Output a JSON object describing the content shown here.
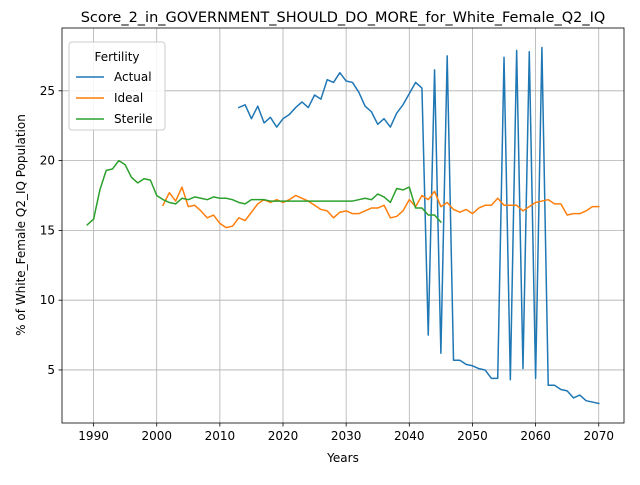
{
  "chart_data": {
    "type": "line",
    "title": "Score_2_in_GOVERNMENT_SHOULD_DO_MORE_for_White_Female_Q2_IQ",
    "xlabel": "Years",
    "ylabel": "% of White_Female Q2_IQ Population",
    "xlim": [
      1985,
      2074
    ],
    "ylim": [
      1.2,
      29.5
    ],
    "xticks": [
      1990,
      2000,
      2010,
      2020,
      2030,
      2040,
      2050,
      2060,
      2070
    ],
    "yticks": [
      5,
      10,
      15,
      20,
      25
    ],
    "grid": true,
    "legend": {
      "title": "Fertility",
      "position": "top-left",
      "entries": [
        "Actual",
        "Ideal",
        "Sterile"
      ]
    },
    "series": [
      {
        "name": "Actual",
        "color": "#1f77b4",
        "points": [
          [
            2013,
            23.8
          ],
          [
            2014,
            24.0
          ],
          [
            2015,
            23.0
          ],
          [
            2016,
            23.9
          ],
          [
            2017,
            22.7
          ],
          [
            2018,
            23.1
          ],
          [
            2019,
            22.4
          ],
          [
            2020,
            23.0
          ],
          [
            2021,
            23.3
          ],
          [
            2022,
            23.8
          ],
          [
            2023,
            24.2
          ],
          [
            2024,
            23.8
          ],
          [
            2025,
            24.7
          ],
          [
            2026,
            24.4
          ],
          [
            2027,
            25.8
          ],
          [
            2028,
            25.6
          ],
          [
            2029,
            26.3
          ],
          [
            2030,
            25.7
          ],
          [
            2031,
            25.6
          ],
          [
            2032,
            24.9
          ],
          [
            2033,
            23.9
          ],
          [
            2034,
            23.5
          ],
          [
            2035,
            22.6
          ],
          [
            2036,
            23.0
          ],
          [
            2037,
            22.4
          ],
          [
            2038,
            23.4
          ],
          [
            2039,
            24.0
          ],
          [
            2040,
            24.8
          ],
          [
            2041,
            25.6
          ],
          [
            2042,
            25.2
          ],
          [
            2043,
            7.5
          ],
          [
            2044,
            26.5
          ],
          [
            2045,
            6.2
          ],
          [
            2046,
            27.5
          ],
          [
            2047,
            5.7
          ],
          [
            2048,
            5.7
          ],
          [
            2049,
            5.4
          ],
          [
            2050,
            5.3
          ],
          [
            2051,
            5.1
          ],
          [
            2052,
            5.0
          ],
          [
            2053,
            4.4
          ],
          [
            2054,
            4.4
          ],
          [
            2055,
            27.4
          ],
          [
            2056,
            4.3
          ],
          [
            2057,
            27.9
          ],
          [
            2058,
            5.1
          ],
          [
            2059,
            27.8
          ],
          [
            2060,
            4.4
          ],
          [
            2061,
            28.1
          ],
          [
            2062,
            3.9
          ],
          [
            2063,
            3.9
          ],
          [
            2064,
            3.6
          ],
          [
            2065,
            3.5
          ],
          [
            2066,
            3.0
          ],
          [
            2067,
            3.2
          ],
          [
            2068,
            2.8
          ],
          [
            2069,
            2.7
          ],
          [
            2070,
            2.6
          ]
        ]
      },
      {
        "name": "Ideal",
        "color": "#ff7f0e",
        "points": [
          [
            2001,
            16.8
          ],
          [
            2002,
            17.7
          ],
          [
            2003,
            17.1
          ],
          [
            2004,
            18.1
          ],
          [
            2005,
            16.7
          ],
          [
            2006,
            16.8
          ],
          [
            2007,
            16.4
          ],
          [
            2008,
            15.9
          ],
          [
            2009,
            16.1
          ],
          [
            2010,
            15.5
          ],
          [
            2011,
            15.2
          ],
          [
            2012,
            15.3
          ],
          [
            2013,
            15.9
          ],
          [
            2014,
            15.7
          ],
          [
            2015,
            16.3
          ],
          [
            2016,
            16.9
          ],
          [
            2017,
            17.2
          ],
          [
            2018,
            17.0
          ],
          [
            2019,
            17.2
          ],
          [
            2020,
            17.0
          ],
          [
            2021,
            17.2
          ],
          [
            2022,
            17.5
          ],
          [
            2023,
            17.3
          ],
          [
            2024,
            17.1
          ],
          [
            2025,
            16.8
          ],
          [
            2026,
            16.5
          ],
          [
            2027,
            16.4
          ],
          [
            2028,
            15.9
          ],
          [
            2029,
            16.3
          ],
          [
            2030,
            16.4
          ],
          [
            2031,
            16.2
          ],
          [
            2032,
            16.2
          ],
          [
            2033,
            16.4
          ],
          [
            2034,
            16.6
          ],
          [
            2035,
            16.6
          ],
          [
            2036,
            16.8
          ],
          [
            2037,
            15.9
          ],
          [
            2038,
            16.0
          ],
          [
            2039,
            16.4
          ],
          [
            2040,
            17.2
          ],
          [
            2041,
            16.7
          ],
          [
            2042,
            17.5
          ],
          [
            2043,
            17.2
          ],
          [
            2044,
            17.8
          ],
          [
            2045,
            16.7
          ],
          [
            2046,
            17.0
          ],
          [
            2047,
            16.5
          ],
          [
            2048,
            16.3
          ],
          [
            2049,
            16.5
          ],
          [
            2050,
            16.2
          ],
          [
            2051,
            16.6
          ],
          [
            2052,
            16.8
          ],
          [
            2053,
            16.8
          ],
          [
            2054,
            17.3
          ],
          [
            2055,
            16.8
          ],
          [
            2056,
            16.8
          ],
          [
            2057,
            16.8
          ],
          [
            2058,
            16.4
          ],
          [
            2059,
            16.7
          ],
          [
            2060,
            17.0
          ],
          [
            2061,
            17.1
          ],
          [
            2062,
            17.2
          ],
          [
            2063,
            16.9
          ],
          [
            2064,
            16.9
          ],
          [
            2065,
            16.1
          ],
          [
            2066,
            16.2
          ],
          [
            2067,
            16.2
          ],
          [
            2068,
            16.4
          ],
          [
            2069,
            16.7
          ],
          [
            2070,
            16.7
          ]
        ]
      },
      {
        "name": "Sterile",
        "color": "#2ca02c",
        "points": [
          [
            1989,
            15.4
          ],
          [
            1990,
            15.8
          ],
          [
            1991,
            17.9
          ],
          [
            1992,
            19.3
          ],
          [
            1993,
            19.4
          ],
          [
            1994,
            20.0
          ],
          [
            1995,
            19.7
          ],
          [
            1996,
            18.8
          ],
          [
            1997,
            18.4
          ],
          [
            1998,
            18.7
          ],
          [
            1999,
            18.6
          ],
          [
            2000,
            17.5
          ],
          [
            2001,
            17.2
          ],
          [
            2002,
            17.0
          ],
          [
            2003,
            16.9
          ],
          [
            2004,
            17.3
          ],
          [
            2005,
            17.2
          ],
          [
            2006,
            17.4
          ],
          [
            2007,
            17.3
          ],
          [
            2008,
            17.2
          ],
          [
            2009,
            17.4
          ],
          [
            2010,
            17.3
          ],
          [
            2011,
            17.3
          ],
          [
            2012,
            17.2
          ],
          [
            2013,
            17.0
          ],
          [
            2014,
            16.9
          ],
          [
            2015,
            17.2
          ],
          [
            2016,
            17.2
          ],
          [
            2017,
            17.2
          ],
          [
            2018,
            17.1
          ],
          [
            2019,
            17.1
          ],
          [
            2020,
            17.1
          ],
          [
            2021,
            17.1
          ],
          [
            2022,
            17.1
          ],
          [
            2023,
            17.1
          ],
          [
            2024,
            17.1
          ],
          [
            2025,
            17.1
          ],
          [
            2026,
            17.1
          ],
          [
            2027,
            17.1
          ],
          [
            2028,
            17.1
          ],
          [
            2029,
            17.1
          ],
          [
            2030,
            17.1
          ],
          [
            2031,
            17.1
          ],
          [
            2032,
            17.2
          ],
          [
            2033,
            17.3
          ],
          [
            2034,
            17.2
          ],
          [
            2035,
            17.6
          ],
          [
            2036,
            17.4
          ],
          [
            2037,
            17.0
          ],
          [
            2038,
            18.0
          ],
          [
            2039,
            17.9
          ],
          [
            2040,
            18.1
          ],
          [
            2041,
            16.6
          ],
          [
            2042,
            16.6
          ],
          [
            2043,
            16.1
          ],
          [
            2044,
            16.1
          ],
          [
            2045,
            15.6
          ]
        ]
      }
    ]
  }
}
